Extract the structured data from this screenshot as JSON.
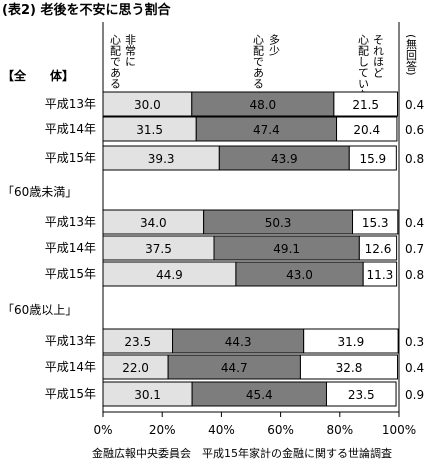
{
  "chart_data": {
    "type": "bar",
    "stacked": true,
    "orientation": "horizontal",
    "title": "(表2) 老後を不安に思う割合",
    "series": [
      {
        "name": "非常に心配である",
        "color": "#e2e2e2"
      },
      {
        "name": "多少心配である",
        "color": "#7d7d7d"
      },
      {
        "name": "それほど心配していない",
        "color": "#ffffff"
      },
      {
        "name": "(無回答)",
        "color": "#ffffff"
      }
    ],
    "groups": [
      {
        "label": "【全　　体】",
        "rows": [
          {
            "label": "平成13年",
            "values": [
              30.0,
              48.0,
              21.5,
              0.4
            ]
          },
          {
            "label": "平成14年",
            "values": [
              31.5,
              47.4,
              20.4,
              0.6
            ]
          },
          {
            "label": "平成15年",
            "values": [
              39.3,
              43.9,
              15.9,
              0.8
            ]
          }
        ]
      },
      {
        "label": "「60歳未満」",
        "rows": [
          {
            "label": "平成13年",
            "values": [
              34.0,
              50.3,
              15.3,
              0.4
            ]
          },
          {
            "label": "平成14年",
            "values": [
              37.5,
              49.1,
              12.6,
              0.7
            ]
          },
          {
            "label": "平成15年",
            "values": [
              44.9,
              43.0,
              11.3,
              0.8
            ]
          }
        ]
      },
      {
        "label": "「60歳以上」",
        "rows": [
          {
            "label": "平成13年",
            "values": [
              23.5,
              44.3,
              31.9,
              0.3
            ]
          },
          {
            "label": "平成14年",
            "values": [
              22.0,
              44.7,
              32.8,
              0.4
            ]
          },
          {
            "label": "平成15年",
            "values": [
              30.1,
              45.4,
              23.5,
              0.9
            ]
          }
        ]
      }
    ],
    "x_ticks": [
      "0%",
      "20%",
      "40%",
      "60%",
      "80%",
      "100%"
    ],
    "xlim": [
      0,
      100
    ],
    "source": "金融広報中央委員会　平成15年家計の金融に関する世論調査"
  }
}
